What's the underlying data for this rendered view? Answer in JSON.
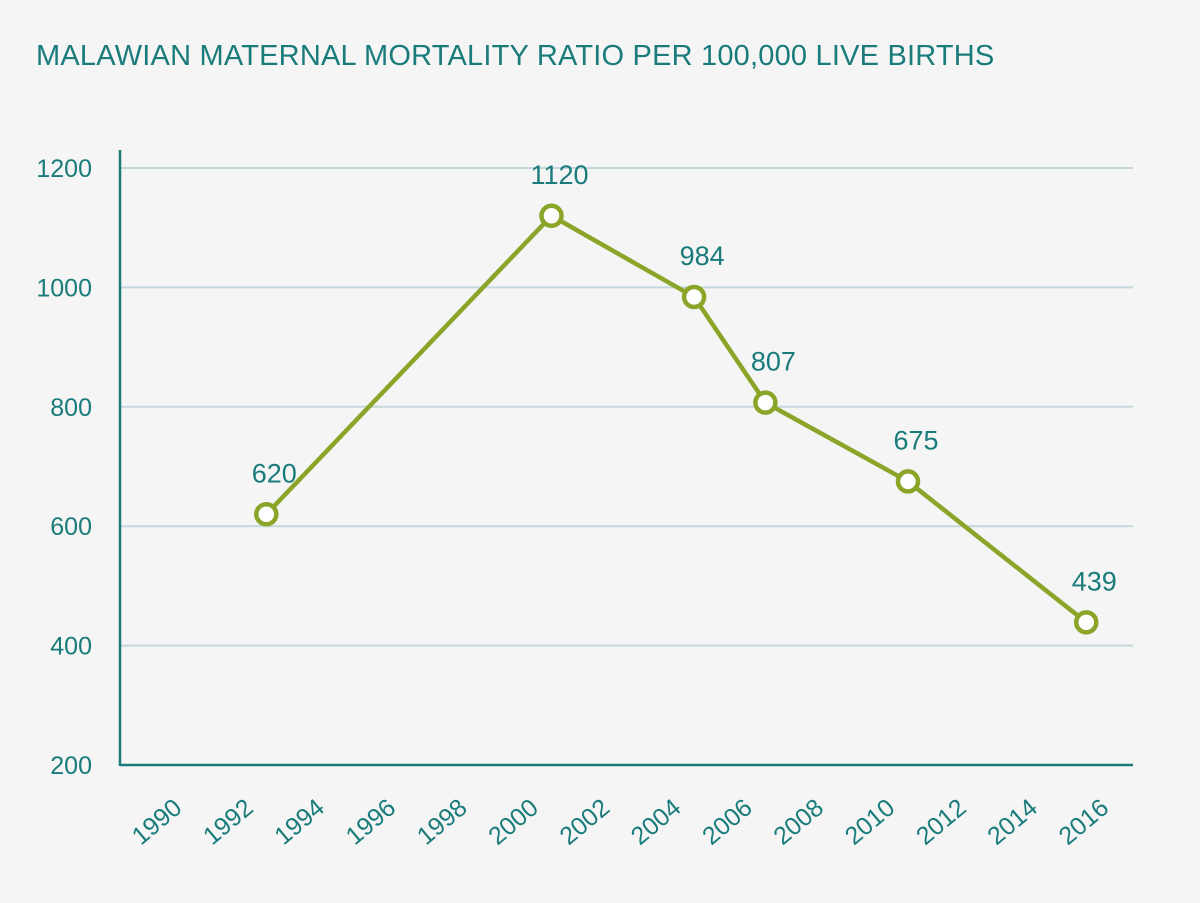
{
  "chart_data": {
    "type": "line",
    "title": "MALAWIAN MATERNAL MORTALITY RATIO PER 100,000 LIVE BIRTHS",
    "xlabel": "",
    "ylabel": "",
    "x_ticks": [
      "1990",
      "1992",
      "1994",
      "1996",
      "1998",
      "2000",
      "2002",
      "2004",
      "2006",
      "2008",
      "2010",
      "2012",
      "2014",
      "2016"
    ],
    "y_ticks": [
      200,
      400,
      600,
      800,
      1000,
      1200
    ],
    "ylim": [
      200,
      1200
    ],
    "grid": true,
    "series": [
      {
        "points": [
          {
            "x": 1992,
            "y": 620,
            "label": "620"
          },
          {
            "x": 2000,
            "y": 1120,
            "label": "1120"
          },
          {
            "x": 2004,
            "y": 984,
            "label": "984"
          },
          {
            "x": 2006,
            "y": 807,
            "label": "807"
          },
          {
            "x": 2010,
            "y": 675,
            "label": "675"
          },
          {
            "x": 2015,
            "y": 439,
            "label": "439"
          }
        ]
      }
    ],
    "colors": {
      "line": "#8aa528",
      "text": "#1a7b7b",
      "axis": "#1a7b7b",
      "grid": "#c5d7dc"
    }
  }
}
